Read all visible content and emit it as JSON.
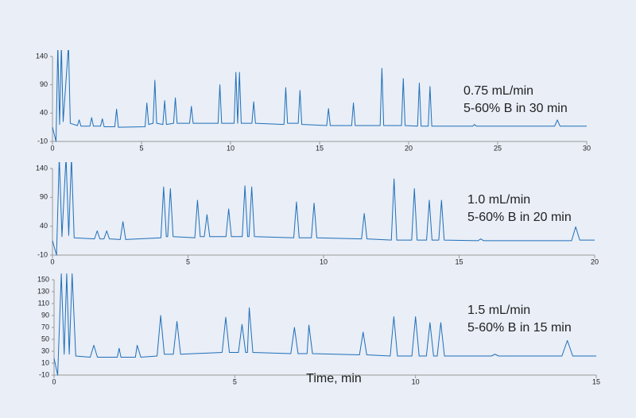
{
  "chart_data": [
    {
      "type": "line",
      "annotations": [
        "0.75 mL/min",
        "5-60% B in 30 min"
      ],
      "color": "#1f6fb8",
      "xlim": [
        0,
        30
      ],
      "xticks": [
        0,
        5,
        10,
        15,
        20,
        25,
        30
      ],
      "ylim": [
        -10,
        140
      ],
      "yticks": [
        -10,
        40,
        90,
        140
      ],
      "x": [
        0,
        0.2,
        0.3,
        0.4,
        0.5,
        0.6,
        0.9,
        1.0,
        1.4,
        1.5,
        1.6,
        2.1,
        2.2,
        2.3,
        2.7,
        2.8,
        2.9,
        3.5,
        3.6,
        3.7,
        5.2,
        5.3,
        5.4,
        5.65,
        5.75,
        5.85,
        6.2,
        6.3,
        6.4,
        6.8,
        6.9,
        7.0,
        7.7,
        7.8,
        7.9,
        9.3,
        9.4,
        9.5,
        10.2,
        10.3,
        10.4,
        10.5,
        10.6,
        11.2,
        11.3,
        11.4,
        13.0,
        13.1,
        13.2,
        13.8,
        13.9,
        14.0,
        15.4,
        15.5,
        15.6,
        16.8,
        16.9,
        17.0,
        18.4,
        18.5,
        18.6,
        19.6,
        19.7,
        19.8,
        20.5,
        20.6,
        20.7,
        21.1,
        21.2,
        21.3,
        23.6,
        23.7,
        23.8,
        28.2,
        28.35,
        28.5,
        30
      ],
      "values": [
        15,
        -10,
        160,
        20,
        160,
        25,
        160,
        22,
        18,
        28,
        17,
        17,
        32,
        17,
        17,
        30,
        16,
        16,
        47,
        15,
        16,
        58,
        20,
        22,
        98,
        22,
        20,
        62,
        20,
        22,
        67,
        22,
        22,
        52,
        22,
        22,
        90,
        22,
        22,
        112,
        22,
        112,
        22,
        22,
        60,
        22,
        20,
        85,
        22,
        22,
        80,
        20,
        18,
        48,
        18,
        18,
        58,
        18,
        18,
        119,
        18,
        18,
        101,
        18,
        17,
        93,
        17,
        17,
        87,
        17,
        17,
        20,
        17,
        17,
        28,
        17,
        17
      ]
    },
    {
      "type": "line",
      "annotations": [
        "1.0 mL/min",
        "5-60% B in 20 min"
      ],
      "color": "#1f6fb8",
      "xlim": [
        0,
        20
      ],
      "xticks": [
        0,
        5,
        10,
        15,
        20
      ],
      "ylim": [
        -10,
        140
      ],
      "yticks": [
        -10,
        40,
        90,
        140
      ],
      "x": [
        0,
        0.15,
        0.25,
        0.35,
        0.5,
        0.6,
        0.7,
        0.8,
        1.55,
        1.65,
        1.75,
        1.9,
        2.0,
        2.1,
        2.5,
        2.6,
        2.7,
        4.0,
        4.1,
        4.2,
        4.25,
        4.35,
        4.45,
        5.25,
        5.35,
        5.45,
        5.6,
        5.7,
        5.8,
        6.4,
        6.5,
        6.6,
        7.0,
        7.1,
        7.2,
        7.25,
        7.35,
        7.45,
        8.9,
        9.0,
        9.1,
        9.55,
        9.65,
        9.75,
        11.4,
        11.5,
        11.6,
        12.5,
        12.6,
        12.7,
        13.25,
        13.35,
        13.45,
        13.8,
        13.9,
        14.0,
        14.25,
        14.35,
        14.45,
        15.7,
        15.8,
        15.9,
        19.15,
        19.3,
        19.45,
        20
      ],
      "values": [
        15,
        -10,
        160,
        22,
        160,
        24,
        160,
        20,
        18,
        32,
        18,
        18,
        32,
        18,
        17,
        48,
        17,
        20,
        108,
        22,
        22,
        105,
        22,
        20,
        85,
        22,
        22,
        60,
        22,
        22,
        70,
        22,
        22,
        110,
        22,
        22,
        108,
        22,
        20,
        82,
        20,
        20,
        80,
        20,
        18,
        62,
        18,
        16,
        122,
        16,
        16,
        105,
        16,
        16,
        85,
        16,
        16,
        85,
        16,
        15,
        18,
        15,
        15,
        39,
        16,
        16
      ]
    },
    {
      "type": "line",
      "annotations": [
        "1.5 mL/min",
        "5-60% B in 15 min"
      ],
      "xlabel": "Time, min",
      "color": "#1f6fb8",
      "xlim": [
        0,
        15
      ],
      "xticks": [
        0,
        5,
        10,
        15
      ],
      "ylim": [
        -10,
        150
      ],
      "yticks": [
        -10,
        10,
        30,
        50,
        70,
        90,
        110,
        130,
        150
      ],
      "x": [
        0,
        0.1,
        0.2,
        0.28,
        0.35,
        0.42,
        0.5,
        0.6,
        1.0,
        1.1,
        1.2,
        1.75,
        1.8,
        1.85,
        2.25,
        2.3,
        2.4,
        2.85,
        2.95,
        3.05,
        3.3,
        3.4,
        3.5,
        4.65,
        4.75,
        4.85,
        5.1,
        5.2,
        5.3,
        5.35,
        5.4,
        5.5,
        6.55,
        6.65,
        6.75,
        7.0,
        7.05,
        7.15,
        8.45,
        8.55,
        8.65,
        9.3,
        9.4,
        9.5,
        9.9,
        10.0,
        10.1,
        10.3,
        10.4,
        10.5,
        10.6,
        10.7,
        10.8,
        12.1,
        12.2,
        12.3,
        14.05,
        14.2,
        14.35,
        15
      ],
      "values": [
        18,
        -10,
        160,
        25,
        160,
        25,
        160,
        22,
        20,
        40,
        20,
        20,
        35,
        20,
        20,
        40,
        20,
        22,
        90,
        25,
        25,
        80,
        25,
        28,
        87,
        28,
        28,
        75,
        28,
        28,
        103,
        28,
        26,
        70,
        26,
        26,
        74,
        26,
        24,
        62,
        24,
        22,
        88,
        22,
        22,
        88,
        22,
        22,
        78,
        22,
        22,
        78,
        22,
        22,
        25,
        22,
        22,
        48,
        22,
        22
      ]
    }
  ]
}
